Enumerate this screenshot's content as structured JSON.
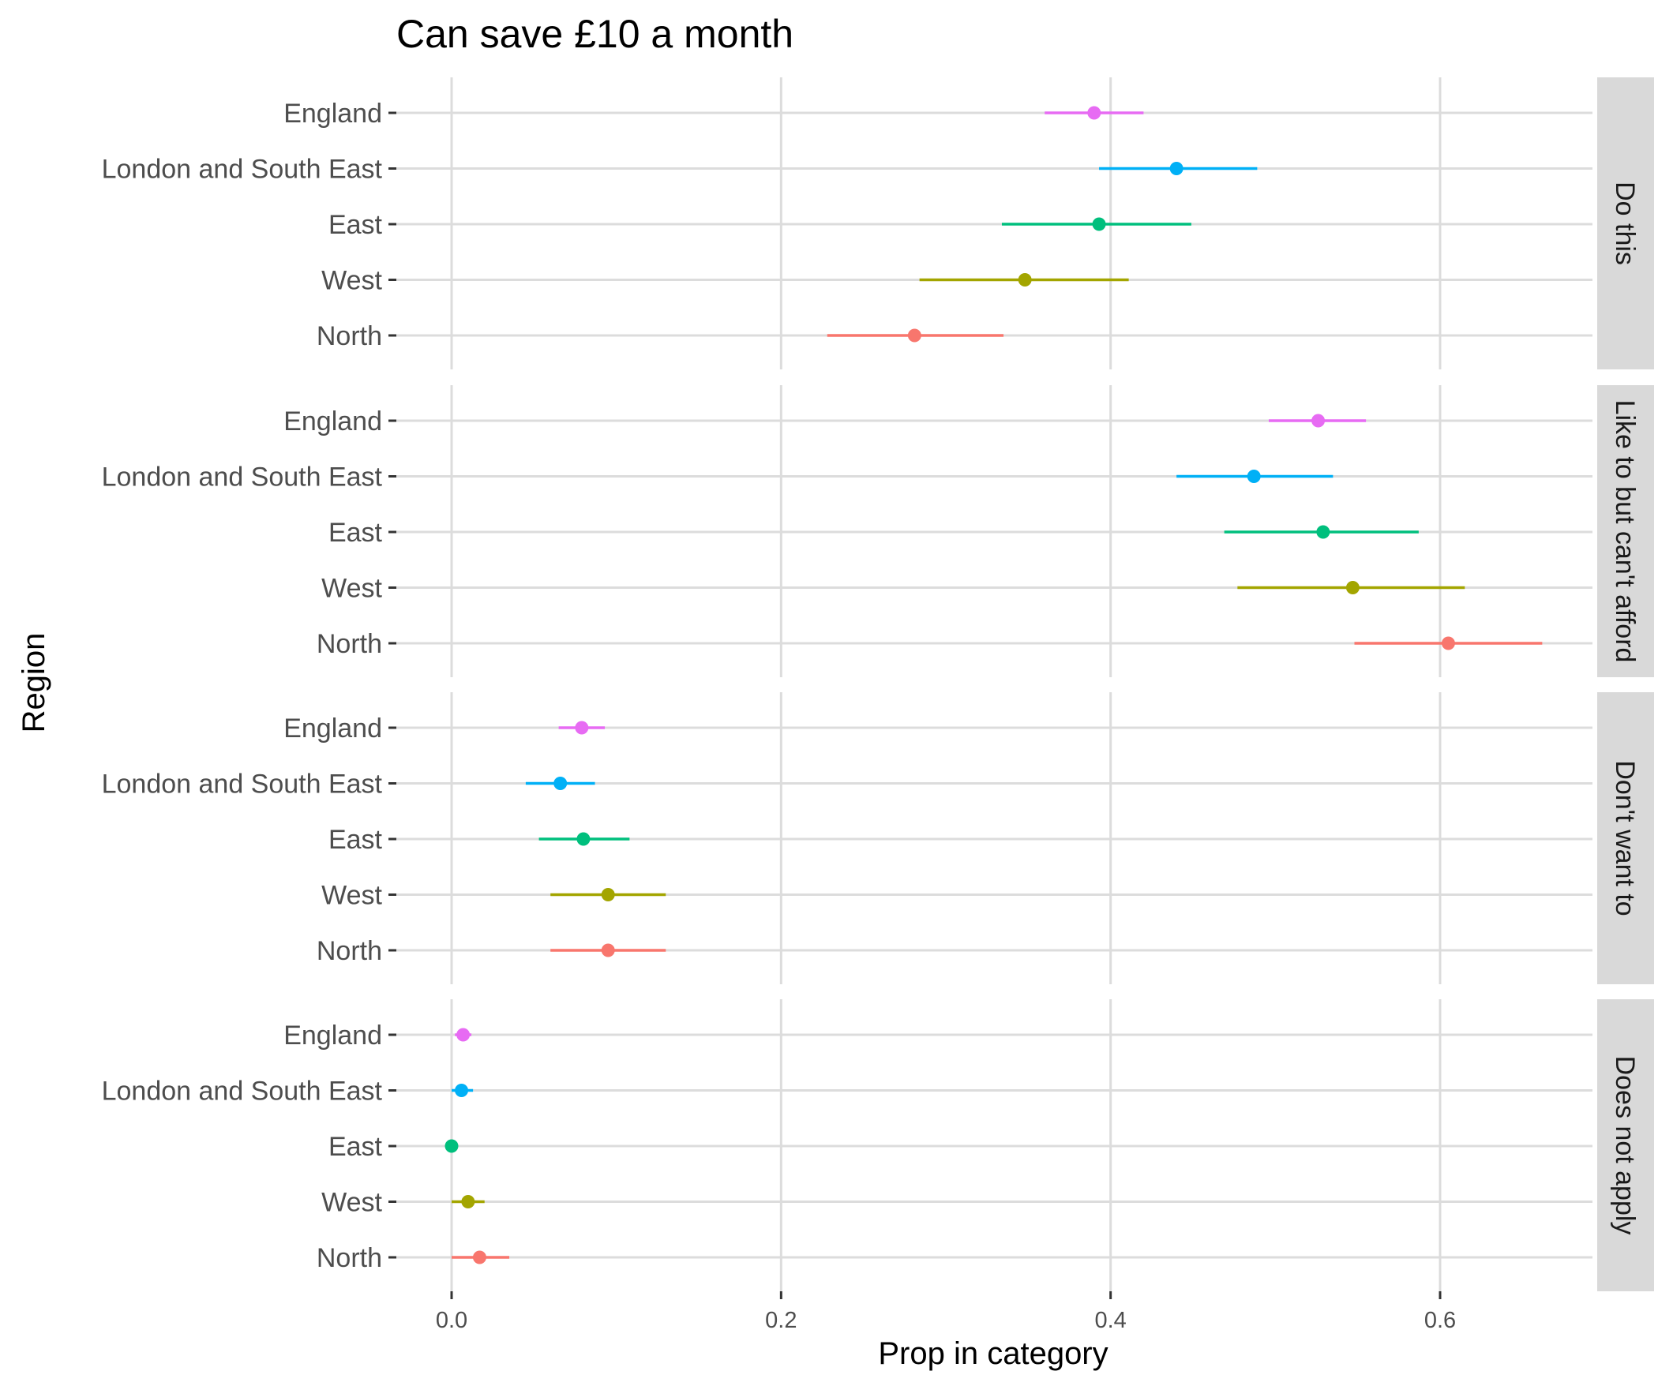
{
  "chart_data": {
    "type": "scatter",
    "subtype": "faceted point-range (dot with confidence interval)",
    "title": "Can save £10 a month",
    "xlabel": "Prop in category",
    "ylabel": "Region",
    "xlim": [
      -0.03,
      0.7
    ],
    "x_ticks": [
      0.0,
      0.2,
      0.4,
      0.6
    ],
    "x_tick_labels": [
      "0.0",
      "0.2",
      "0.4",
      "0.6"
    ],
    "categories": [
      "England",
      "London and South East",
      "East",
      "West",
      "North"
    ],
    "grid": true,
    "legend": "none",
    "region_colors": {
      "England": "#e76bf3",
      "London and South East": "#00b0f6",
      "East": "#00bf7d",
      "West": "#a3a500",
      "North": "#f8766d"
    },
    "facets": [
      {
        "label": "Do this",
        "points": [
          {
            "region": "England",
            "value": 0.39,
            "low": 0.36,
            "high": 0.42
          },
          {
            "region": "London and South East",
            "value": 0.44,
            "low": 0.393,
            "high": 0.489
          },
          {
            "region": "East",
            "value": 0.393,
            "low": 0.334,
            "high": 0.449
          },
          {
            "region": "West",
            "value": 0.348,
            "low": 0.284,
            "high": 0.411
          },
          {
            "region": "North",
            "value": 0.281,
            "low": 0.228,
            "high": 0.335
          }
        ]
      },
      {
        "label": "Like to but can't afford",
        "points": [
          {
            "region": "England",
            "value": 0.526,
            "low": 0.496,
            "high": 0.555
          },
          {
            "region": "London and South East",
            "value": 0.487,
            "low": 0.44,
            "high": 0.535
          },
          {
            "region": "East",
            "value": 0.529,
            "low": 0.469,
            "high": 0.587
          },
          {
            "region": "West",
            "value": 0.547,
            "low": 0.477,
            "high": 0.615
          },
          {
            "region": "North",
            "value": 0.605,
            "low": 0.548,
            "high": 0.662
          }
        ]
      },
      {
        "label": "Don't want to",
        "points": [
          {
            "region": "England",
            "value": 0.079,
            "low": 0.065,
            "high": 0.093
          },
          {
            "region": "London and South East",
            "value": 0.066,
            "low": 0.045,
            "high": 0.087
          },
          {
            "region": "East",
            "value": 0.08,
            "low": 0.053,
            "high": 0.108
          },
          {
            "region": "West",
            "value": 0.095,
            "low": 0.06,
            "high": 0.13
          },
          {
            "region": "North",
            "value": 0.095,
            "low": 0.06,
            "high": 0.13
          }
        ]
      },
      {
        "label": "Does not apply",
        "points": [
          {
            "region": "England",
            "value": 0.007,
            "low": 0.002,
            "high": 0.012
          },
          {
            "region": "London and South East",
            "value": 0.006,
            "low": 0.0,
            "high": 0.013
          },
          {
            "region": "East",
            "value": 0.0,
            "low": 0.0,
            "high": 0.0
          },
          {
            "region": "West",
            "value": 0.01,
            "low": 0.0,
            "high": 0.02
          },
          {
            "region": "North",
            "value": 0.017,
            "low": 0.0,
            "high": 0.035
          }
        ]
      }
    ]
  }
}
